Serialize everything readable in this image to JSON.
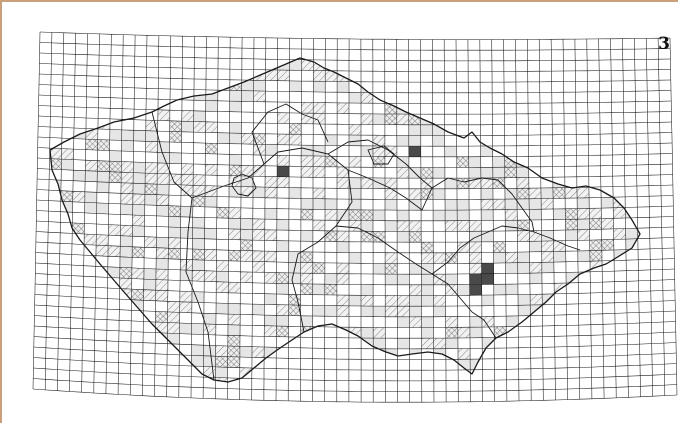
{
  "figure": {
    "panel_number": "3"
  },
  "colors": {
    "grid_line": "#1a1a1a",
    "border_line": "#1a1a1a",
    "light_fill": "#e6e6e6",
    "hatch_line": "#777777",
    "crosshatch_line": "#555555",
    "dark_fill": "#4a4a4a",
    "frame": "#c9a07a"
  },
  "map": {
    "description_visible": false,
    "cell_categories": [
      "light",
      "hatched",
      "crosshatched",
      "dark"
    ]
  }
}
